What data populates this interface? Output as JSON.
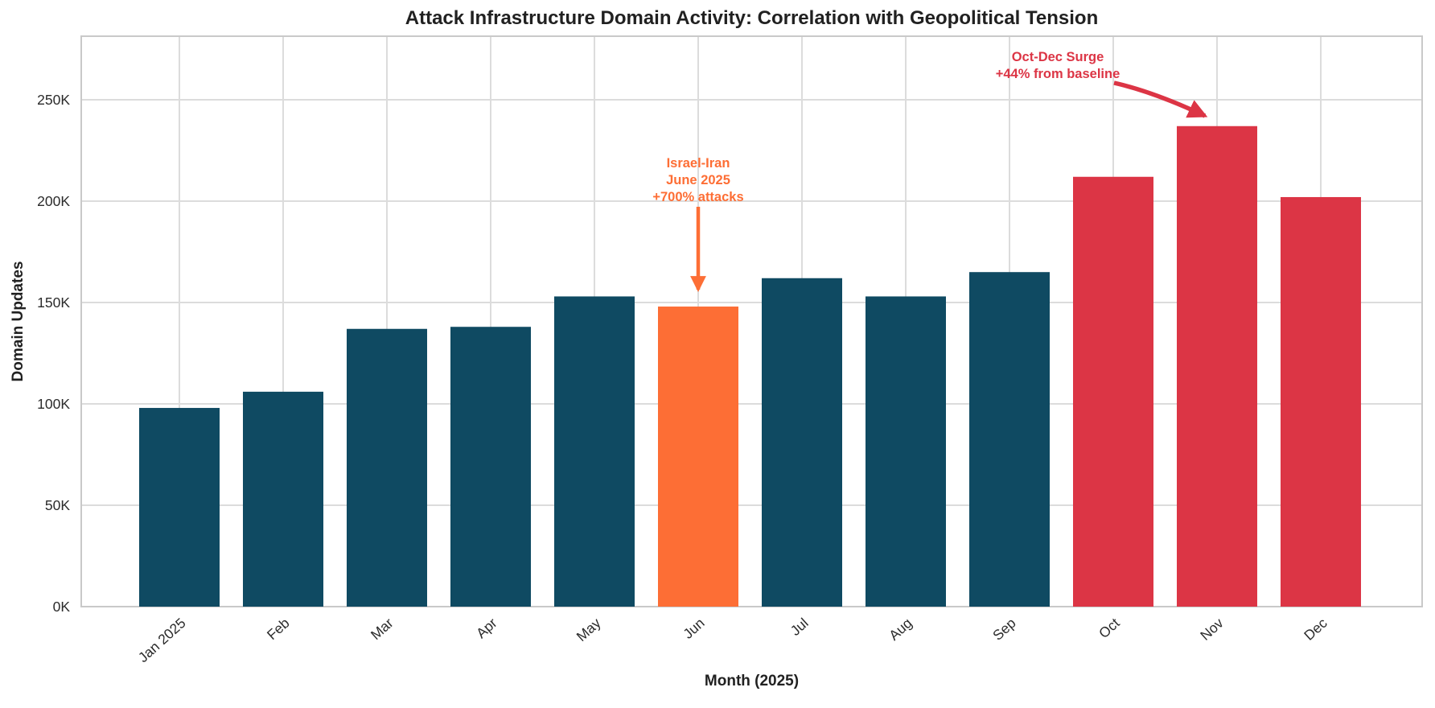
{
  "chart_data": {
    "type": "bar",
    "title": "Attack Infrastructure Domain Activity: Correlation with Geopolitical Tension",
    "xlabel": "Month (2025)",
    "ylabel": "Domain Updates",
    "categories": [
      "Jan 2025",
      "Feb",
      "Mar",
      "Apr",
      "May",
      "Jun",
      "Jul",
      "Aug",
      "Sep",
      "Oct",
      "Nov",
      "Dec"
    ],
    "values": [
      98000,
      106000,
      137000,
      138000,
      153000,
      148000,
      162000,
      153000,
      165000,
      212000,
      237000,
      202000
    ],
    "point_colors": [
      "#0F4A62",
      "#0F4A62",
      "#0F4A62",
      "#0F4A62",
      "#0F4A62",
      "#FD6E35",
      "#0F4A62",
      "#0F4A62",
      "#0F4A62",
      "#DC3545",
      "#DC3545",
      "#DC3545"
    ],
    "ytick_labels": [
      "0K",
      "50K",
      "100K",
      "150K",
      "200K",
      "250K"
    ],
    "ytick_values": [
      0,
      50000,
      100000,
      150000,
      200000,
      250000
    ],
    "ylim": [
      0,
      281000
    ],
    "grid": true,
    "legend": "none",
    "colors": {
      "baseline_bar": "#0F4A62",
      "june_highlight": "#FD6E35",
      "surge_bar": "#DC3545",
      "title_text": "#212121",
      "tick_text": "#2b2b2b",
      "gridline": "#dcdcdc",
      "plot_border": "#c9c9c9"
    },
    "annotations": [
      {
        "id": "israel-iran-june",
        "lines": [
          "Israel-Iran",
          "June 2025",
          "+700% attacks"
        ],
        "color": "#FD6E35",
        "target_month": "Jun"
      },
      {
        "id": "oct-dec-surge",
        "lines": [
          "Oct-Dec Surge",
          "+44% from baseline"
        ],
        "color": "#DC3545",
        "target_month": "Nov"
      }
    ]
  }
}
